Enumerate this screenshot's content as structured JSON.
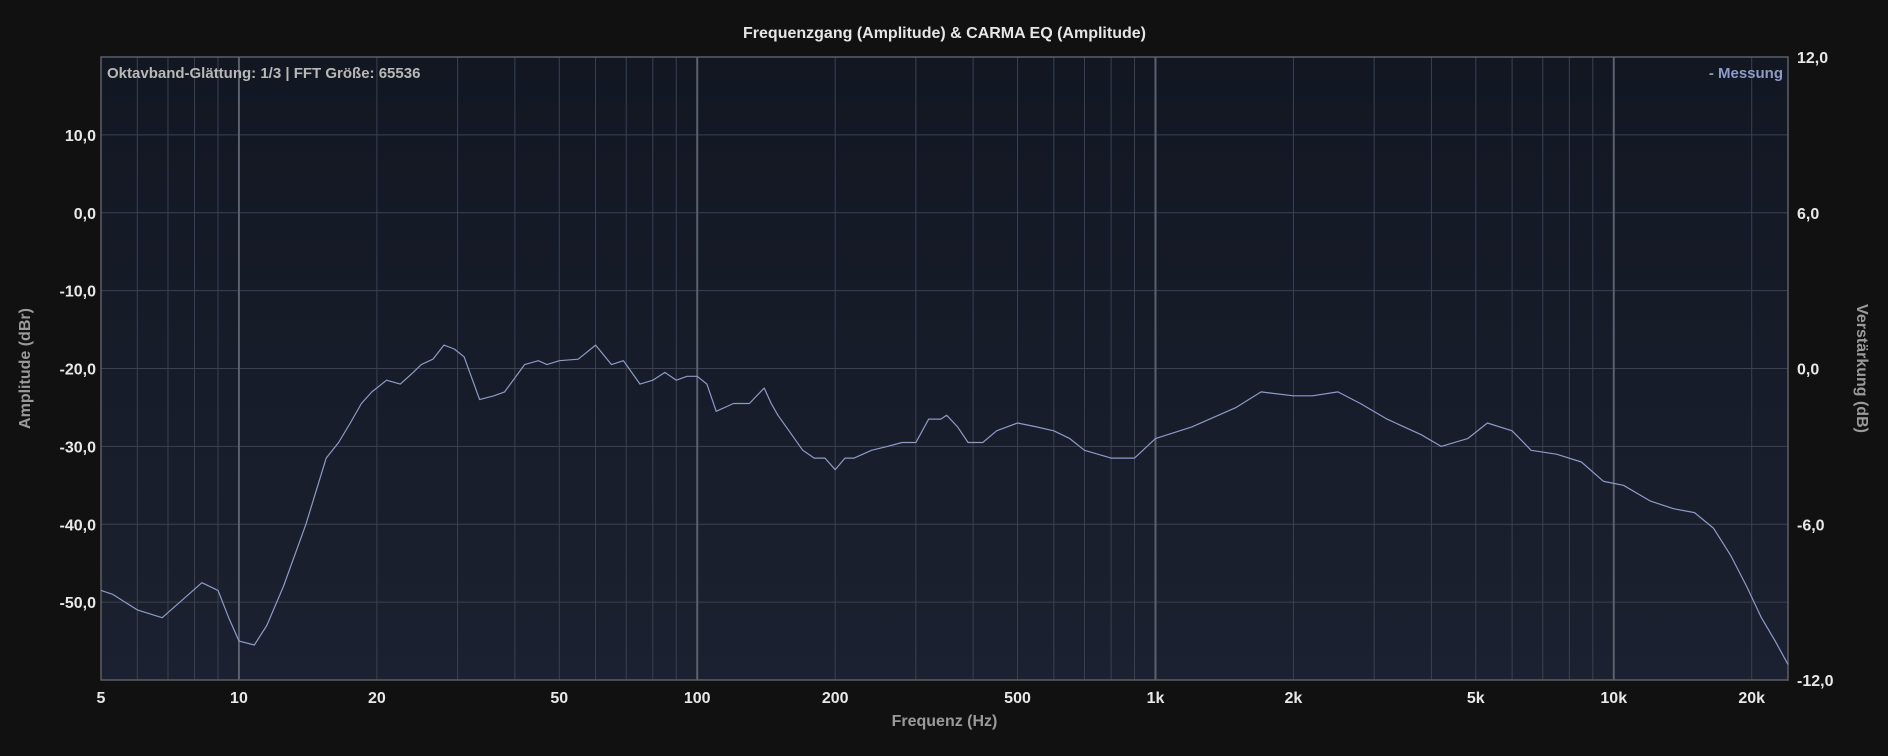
{
  "chart_data": {
    "type": "line",
    "title": "Frequenzgang (Amplitude) & CARMA EQ (Amplitude)",
    "info_text": "Oktavband-Glättung: 1/3 | FFT Größe: 65536",
    "xlabel": "Frequenz (Hz)",
    "ylabel": "Amplitude (dBr)",
    "y2label": "Verstärkung (dB)",
    "x_scale": "log",
    "xlim": [
      5,
      24000
    ],
    "ylim": [
      -60,
      20
    ],
    "y2lim": [
      -12,
      12
    ],
    "grid": true,
    "legend_position": "top-right",
    "x_ticks": [
      {
        "value": 5,
        "label": "5"
      },
      {
        "value": 10,
        "label": "10"
      },
      {
        "value": 20,
        "label": "20"
      },
      {
        "value": 50,
        "label": "50"
      },
      {
        "value": 100,
        "label": "100"
      },
      {
        "value": 200,
        "label": "200"
      },
      {
        "value": 500,
        "label": "500"
      },
      {
        "value": 1000,
        "label": "1k"
      },
      {
        "value": 2000,
        "label": "2k"
      },
      {
        "value": 5000,
        "label": "5k"
      },
      {
        "value": 10000,
        "label": "10k"
      },
      {
        "value": 20000,
        "label": "20k"
      }
    ],
    "y_ticks": [
      {
        "value": 10,
        "label": "10,0"
      },
      {
        "value": 0,
        "label": "0,0"
      },
      {
        "value": -10,
        "label": "-10,0"
      },
      {
        "value": -20,
        "label": "-20,0"
      },
      {
        "value": -30,
        "label": "-30,0"
      },
      {
        "value": -40,
        "label": "-40,0"
      },
      {
        "value": -50,
        "label": "-50,0"
      }
    ],
    "y2_ticks": [
      {
        "value": 12,
        "label": "12,0"
      },
      {
        "value": 6,
        "label": "6,0"
      },
      {
        "value": 0,
        "label": "0,0"
      },
      {
        "value": -6,
        "label": "-6,0"
      },
      {
        "value": -12,
        "label": "-12,0"
      }
    ],
    "series": [
      {
        "name": "- Messung",
        "color": "#8e9ac8",
        "x": [
          5,
          5.3,
          6,
          6.8,
          8.3,
          9,
          9.5,
          10,
          10.8,
          11.5,
          12.5,
          14,
          15.5,
          16.5,
          17.5,
          18.5,
          19.5,
          21,
          22.5,
          24,
          25,
          26.5,
          28,
          29.5,
          31,
          33.5,
          36,
          38,
          42,
          45,
          47,
          50,
          55,
          60,
          65,
          69,
          75,
          80,
          85,
          90,
          95,
          100,
          105,
          110,
          120,
          130,
          140,
          145,
          150,
          170,
          180,
          190,
          200,
          210,
          220,
          240,
          260,
          280,
          300,
          320,
          340,
          350,
          370,
          390,
          420,
          450,
          500,
          550,
          600,
          650,
          700,
          800,
          900,
          1000,
          1200,
          1500,
          1700,
          2000,
          2200,
          2500,
          2800,
          3200,
          3800,
          4200,
          4800,
          5300,
          6000,
          6600,
          7500,
          8500,
          9500,
          10500,
          12000,
          13500,
          15000,
          16500,
          18000,
          19500,
          21000,
          22500,
          24000
        ],
        "y": [
          -48.5,
          -49,
          -51,
          -52,
          -47.5,
          -48.5,
          -52,
          -55,
          -55.5,
          -53,
          -48,
          -40,
          -31.5,
          -29.5,
          -27,
          -24.5,
          -23,
          -21.5,
          -22,
          -20.5,
          -19.5,
          -18.8,
          -17,
          -17.5,
          -18.5,
          -24,
          -23.5,
          -23,
          -19.5,
          -19,
          -19.5,
          -19,
          -18.8,
          -17,
          -19.5,
          -19,
          -22,
          -21.5,
          -20.5,
          -21.5,
          -21,
          -21,
          -22,
          -25.5,
          -24.5,
          -24.5,
          -22.5,
          -24.5,
          -26,
          -30.5,
          -31.5,
          -31.5,
          -33,
          -31.5,
          -31.5,
          -30.5,
          -30,
          -29.5,
          -29.5,
          -26.5,
          -26.5,
          -26,
          -27.5,
          -29.5,
          -29.5,
          -28,
          -27,
          -27.5,
          -28,
          -29,
          -30.5,
          -31.5,
          -31.5,
          -29,
          -27.5,
          -25,
          -23,
          -23.5,
          -23.5,
          -23,
          -24.5,
          -26.5,
          -28.5,
          -30,
          -29,
          -27,
          -28,
          -30.5,
          -31,
          -32,
          -34.5,
          -35,
          -37,
          -38,
          -38.5,
          -40.5,
          -44,
          -48,
          -52,
          -55,
          -58
        ]
      }
    ]
  }
}
